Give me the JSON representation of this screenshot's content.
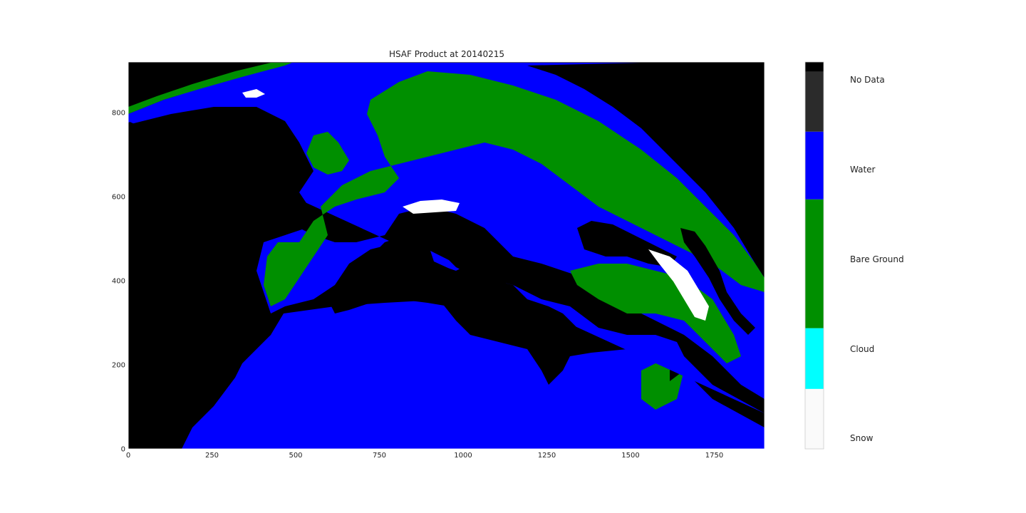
{
  "chart_data": {
    "type": "heatmap",
    "title": "HSAF Product at 20140215",
    "xlabel": "",
    "ylabel": "",
    "xlim": [
      0,
      1900
    ],
    "ylim": [
      0,
      920
    ],
    "x_ticks": [
      0,
      250,
      500,
      750,
      1000,
      1250,
      1500,
      1750
    ],
    "y_ticks": [
      0,
      200,
      400,
      600,
      800
    ],
    "grid": false,
    "colorbar": {
      "placement": "right",
      "categories": [
        {
          "label": "Snow",
          "color": "#fafafa"
        },
        {
          "label": "Cloud",
          "color": "#00ffff"
        },
        {
          "label": "Bare Ground",
          "color": "#008f00"
        },
        {
          "label": "Water",
          "color": "#0000ff"
        },
        {
          "label": "No Data",
          "color": "#2b2b2b"
        }
      ],
      "top_band_color": "#000000"
    },
    "background_color": "#000000"
  }
}
